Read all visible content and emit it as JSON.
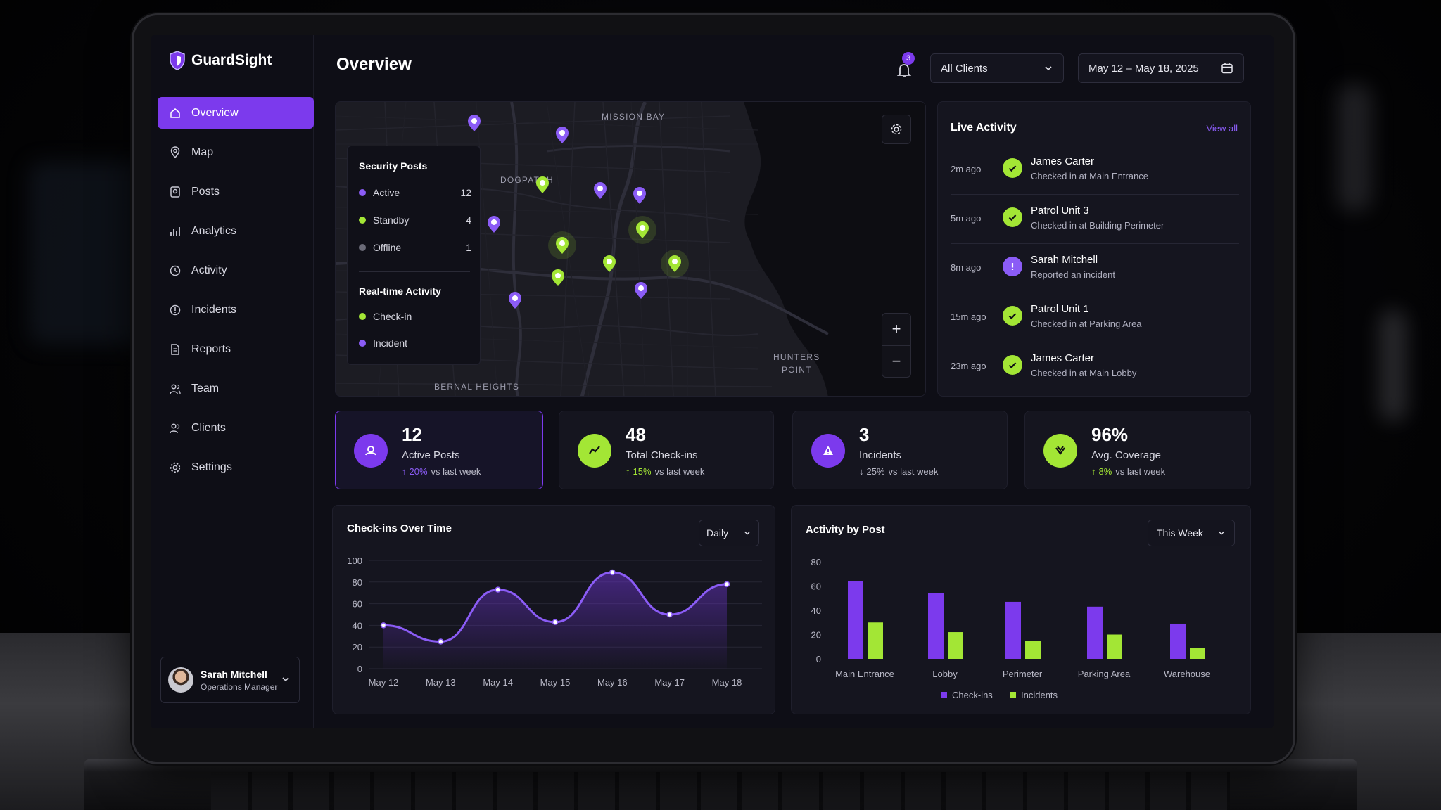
{
  "brand": {
    "name": "GuardSight"
  },
  "nav": [
    {
      "label": "Overview",
      "icon": "home-icon",
      "active": true
    },
    {
      "label": "Map",
      "icon": "map-icon"
    },
    {
      "label": "Posts",
      "icon": "posts-icon"
    },
    {
      "label": "Analytics",
      "icon": "analytics-icon"
    },
    {
      "label": "Activity",
      "icon": "clock-icon"
    },
    {
      "label": "Incidents",
      "icon": "alert-icon"
    },
    {
      "label": "Reports",
      "icon": "document-icon"
    },
    {
      "label": "Team",
      "icon": "team-icon"
    },
    {
      "label": "Clients",
      "icon": "clients-icon"
    },
    {
      "label": "Settings",
      "icon": "gear-icon"
    }
  ],
  "user": {
    "name": "Sarah Mitchell",
    "role": "Operations Manager"
  },
  "header": {
    "title": "Overview",
    "notifications": "3",
    "client_filter": "All Clients",
    "date_range": "May 12 – May 18, 2025"
  },
  "map": {
    "labels": {
      "mission_bay": "MISSION BAY",
      "dogpatch": "DOGPATCH",
      "hunters_point_1": "HUNTERS",
      "hunters_point_2": "POINT",
      "bernal": "BERNAL HEIGHTS"
    },
    "legend": {
      "posts_title": "Security Posts",
      "posts": [
        {
          "label": "Active",
          "count": "12",
          "color": "#8b5cf6"
        },
        {
          "label": "Standby",
          "count": "4",
          "color": "#a3e635"
        },
        {
          "label": "Offline",
          "count": "1",
          "color": "#6b6b78"
        }
      ],
      "realtime_title": "Real-time Activity",
      "realtime": [
        {
          "label": "Check-in",
          "color": "#a3e635"
        },
        {
          "label": "Incident",
          "color": "#8b5cf6"
        }
      ]
    },
    "zoom_in": "+",
    "zoom_out": "−"
  },
  "live_activity": {
    "title": "Live Activity",
    "view_all": "View all",
    "items": [
      {
        "time": "2m ago",
        "name": "James Carter",
        "desc": "Checked in at Main Entrance",
        "type": "check"
      },
      {
        "time": "5m ago",
        "name": "Patrol Unit 3",
        "desc": "Checked in at Building Perimeter",
        "type": "check"
      },
      {
        "time": "8m ago",
        "name": "Sarah Mitchell",
        "desc": "Reported an incident",
        "type": "alert"
      },
      {
        "time": "15m ago",
        "name": "Patrol Unit 1",
        "desc": "Checked in at Parking Area",
        "type": "check"
      },
      {
        "time": "23m ago",
        "name": "James Carter",
        "desc": "Checked in at Main Lobby",
        "type": "check"
      }
    ]
  },
  "stats": [
    {
      "value": "12",
      "label": "Active Posts",
      "change": "20%",
      "suffix": "vs last week",
      "dir": "↑",
      "accent": "#8b5cf6"
    },
    {
      "value": "48",
      "label": "Total Check-ins",
      "change": "15%",
      "suffix": "vs last week",
      "dir": "↑",
      "accent": "#a3e635"
    },
    {
      "value": "3",
      "label": "Incidents",
      "change": "25%",
      "suffix": "vs last week",
      "dir": "↓",
      "accent": "#b8b8c6"
    },
    {
      "value": "96%",
      "label": "Avg. Coverage",
      "change": "8%",
      "suffix": "vs last week",
      "dir": "↑",
      "accent": "#a3e635"
    }
  ],
  "checkins_chart": {
    "title": "Check-ins Over Time",
    "period": "Daily"
  },
  "activity_chart": {
    "title": "Activity by Post",
    "period": "This Week"
  },
  "colors": {
    "accent": "#7c3aed",
    "purple": "#8b5cf6",
    "lime": "#a3e635"
  },
  "chart_data": [
    {
      "type": "area",
      "title": "Check-ins Over Time",
      "x": [
        "May 12",
        "May 13",
        "May 14",
        "May 15",
        "May 16",
        "May 17",
        "May 18"
      ],
      "values": [
        40,
        25,
        73,
        43,
        89,
        50,
        78
      ],
      "ylim": [
        0,
        100
      ],
      "yticks": [
        0,
        20,
        40,
        60,
        80,
        100
      ],
      "grid": true
    },
    {
      "type": "bar",
      "title": "Activity by Post",
      "categories": [
        "Main Entrance",
        "Lobby",
        "Perimeter",
        "Parking Area",
        "Warehouse"
      ],
      "series": [
        {
          "name": "Check-ins",
          "values": [
            64,
            54,
            47,
            43,
            29
          ],
          "color": "#7c3aed"
        },
        {
          "name": "Incidents",
          "values": [
            30,
            22,
            15,
            20,
            9
          ],
          "color": "#a3e635"
        }
      ],
      "ylim": [
        0,
        80
      ],
      "yticks": [
        0,
        20,
        40,
        60,
        80
      ],
      "legend": "bottom"
    }
  ]
}
